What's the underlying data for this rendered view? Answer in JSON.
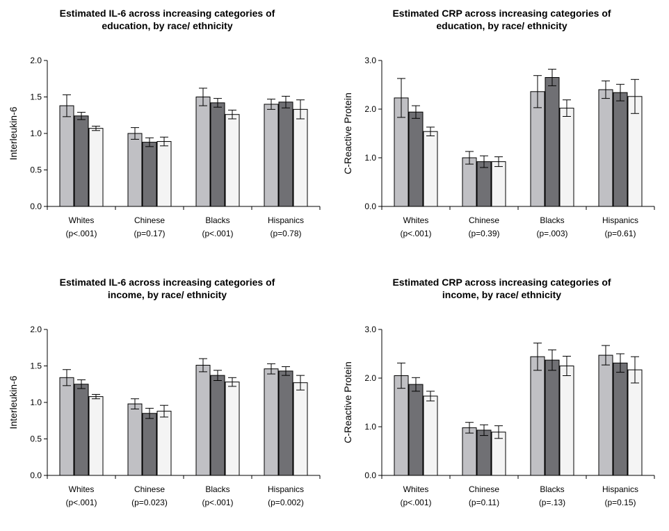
{
  "chart_data": [
    {
      "type": "bar",
      "title": "Estimated IL-6 across increasing categories of\neducation, by race/ ethnicity",
      "ylabel": "Interleukin-6",
      "ylim": [
        0,
        2.0
      ],
      "yticks": [
        "0.0",
        "0.5",
        "1.0",
        "1.5",
        "2.0"
      ],
      "categories": [
        "Whites",
        "Chinese",
        "Blacks",
        "Hispanics"
      ],
      "pvalues": [
        "(p<.001)",
        "(p=0.17)",
        "(p<.001)",
        "(p=0.78)"
      ],
      "series_colors": [
        "#c0c0c4",
        "#707074",
        "#f4f4f4"
      ],
      "series": [
        {
          "values": [
            1.38,
            1.0,
            1.5,
            1.4
          ],
          "err": [
            0.15,
            0.08,
            0.12,
            0.07
          ]
        },
        {
          "values": [
            1.24,
            0.88,
            1.42,
            1.43
          ],
          "err": [
            0.05,
            0.06,
            0.06,
            0.08
          ]
        },
        {
          "values": [
            1.07,
            0.89,
            1.26,
            1.33
          ],
          "err": [
            0.03,
            0.06,
            0.06,
            0.13
          ]
        }
      ]
    },
    {
      "type": "bar",
      "title": "Estimated CRP across increasing categories of\neducation, by race/ ethnicity",
      "ylabel": "C-Reactive Protein",
      "ylim": [
        0,
        3.0
      ],
      "yticks": [
        "0.0",
        "1.0",
        "2.0",
        "3.0"
      ],
      "categories": [
        "Whites",
        "Chinese",
        "Blacks",
        "Hispanics"
      ],
      "pvalues": [
        "(p<.001)",
        "(p=0.39)",
        "(p=.003)",
        "(p=0.61)"
      ],
      "series_colors": [
        "#c0c0c4",
        "#707074",
        "#f4f4f4"
      ],
      "series": [
        {
          "values": [
            2.23,
            1.0,
            2.36,
            2.4
          ],
          "err": [
            0.4,
            0.13,
            0.33,
            0.18
          ]
        },
        {
          "values": [
            1.94,
            0.92,
            2.65,
            2.34
          ],
          "err": [
            0.13,
            0.12,
            0.17,
            0.17
          ]
        },
        {
          "values": [
            1.54,
            0.92,
            2.02,
            2.26
          ],
          "err": [
            0.09,
            0.1,
            0.17,
            0.35
          ]
        }
      ]
    },
    {
      "type": "bar",
      "title": "Estimated IL-6 across increasing categories of\nincome, by race/ ethnicity",
      "ylabel": "Interleukin-6",
      "ylim": [
        0,
        2.0
      ],
      "yticks": [
        "0.0",
        "0.5",
        "1.0",
        "1.5",
        "2.0"
      ],
      "categories": [
        "Whites",
        "Chinese",
        "Blacks",
        "Hispanics"
      ],
      "pvalues": [
        "(p<.001)",
        "(p=0.023)",
        "(p<.001)",
        "(p=0.002)"
      ],
      "series_colors": [
        "#c0c0c4",
        "#707074",
        "#f4f4f4"
      ],
      "series": [
        {
          "values": [
            1.34,
            0.98,
            1.51,
            1.46
          ],
          "err": [
            0.11,
            0.07,
            0.09,
            0.07
          ]
        },
        {
          "values": [
            1.25,
            0.85,
            1.37,
            1.43
          ],
          "err": [
            0.06,
            0.07,
            0.07,
            0.06
          ]
        },
        {
          "values": [
            1.08,
            0.88,
            1.28,
            1.27
          ],
          "err": [
            0.03,
            0.08,
            0.06,
            0.1
          ]
        }
      ]
    },
    {
      "type": "bar",
      "title": "Estimated CRP across increasing categories of\nincome, by race/ ethnicity",
      "ylabel": "C-Reactive Protein",
      "ylim": [
        0,
        3.0
      ],
      "yticks": [
        "0.0",
        "1.0",
        "2.0",
        "3.0"
      ],
      "categories": [
        "Whites",
        "Chinese",
        "Blacks",
        "Hispanics"
      ],
      "pvalues": [
        "(p<.001)",
        "(p=0.11)",
        "(p=.13)",
        "(p=0.15)"
      ],
      "series_colors": [
        "#c0c0c4",
        "#707074",
        "#f4f4f4"
      ],
      "series": [
        {
          "values": [
            2.05,
            0.98,
            2.44,
            2.47
          ],
          "err": [
            0.26,
            0.11,
            0.28,
            0.2
          ]
        },
        {
          "values": [
            1.87,
            0.93,
            2.37,
            2.31
          ],
          "err": [
            0.14,
            0.11,
            0.21,
            0.19
          ]
        },
        {
          "values": [
            1.63,
            0.89,
            2.25,
            2.17
          ],
          "err": [
            0.1,
            0.13,
            0.2,
            0.27
          ]
        }
      ]
    }
  ]
}
